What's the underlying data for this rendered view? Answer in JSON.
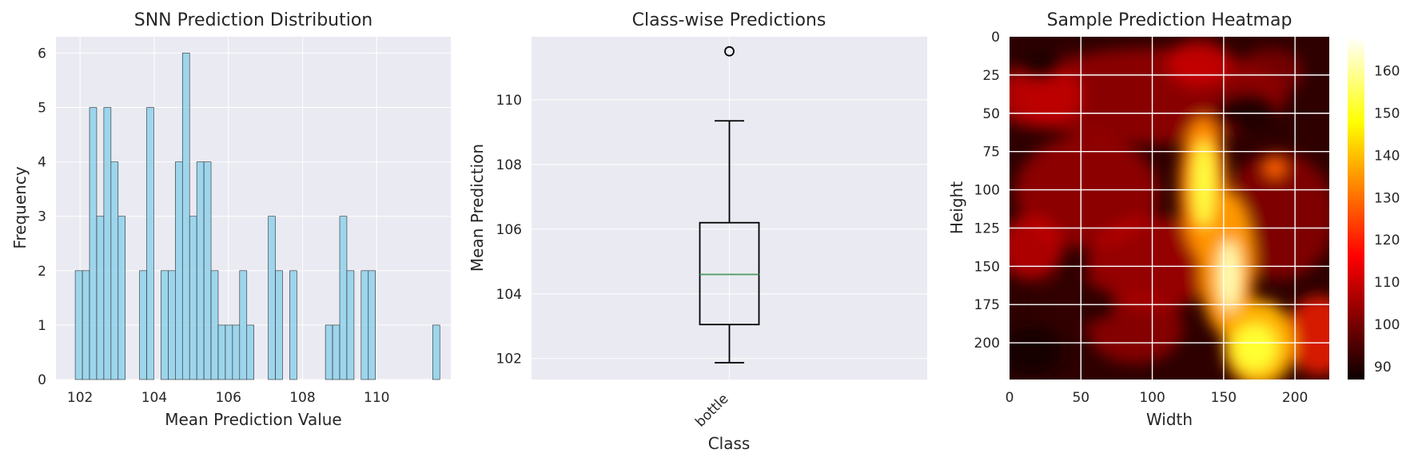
{
  "chart_data": [
    {
      "type": "bar",
      "title": "SNN Prediction Distribution",
      "xlabel": "Mean Prediction Value",
      "ylabel": "Frequency",
      "xlim": [
        101.35,
        112.0
      ],
      "ylim": [
        0,
        6.3
      ],
      "xticks": [
        102,
        104,
        106,
        108,
        110
      ],
      "yticks": [
        0,
        1,
        2,
        3,
        4,
        5,
        6
      ],
      "bin_start": 101.87,
      "bin_width": 0.1928,
      "values": [
        2,
        2,
        5,
        3,
        5,
        4,
        3,
        0,
        0,
        2,
        5,
        0,
        2,
        2,
        4,
        6,
        3,
        4,
        4,
        2,
        1,
        1,
        1,
        2,
        1,
        0,
        0,
        3,
        2,
        0,
        2,
        0,
        0,
        0,
        0,
        1,
        1,
        3,
        2,
        0,
        2,
        2,
        0,
        0,
        0,
        0,
        0,
        0,
        0,
        0,
        1
      ],
      "bar_color": "#87ceeb",
      "grid": true
    },
    {
      "type": "box",
      "title": "Class-wise Predictions",
      "xlabel": "Class",
      "ylabel": "Mean Prediction",
      "categories": [
        "bottle"
      ],
      "ylim": [
        101.35,
        111.95
      ],
      "yticks": [
        102,
        104,
        106,
        108,
        110
      ],
      "whisker_low": 101.87,
      "q1": 103.05,
      "median": 104.6,
      "q3": 106.2,
      "whisker_high": 109.35,
      "outliers": [
        111.5
      ],
      "median_color": "#4c9a5c"
    },
    {
      "type": "heatmap",
      "title": "Sample Prediction Heatmap",
      "xlabel": "Width",
      "ylabel": "Height",
      "xlim": [
        0,
        224
      ],
      "ylim": [
        224,
        0
      ],
      "xticks": [
        0,
        50,
        100,
        150,
        200
      ],
      "yticks": [
        0,
        25,
        50,
        75,
        100,
        125,
        150,
        175,
        200
      ],
      "colormap": "hot",
      "colorbar_range": [
        87,
        168
      ],
      "colorbar_ticks": [
        90,
        100,
        110,
        120,
        130,
        140,
        150,
        160
      ]
    }
  ]
}
